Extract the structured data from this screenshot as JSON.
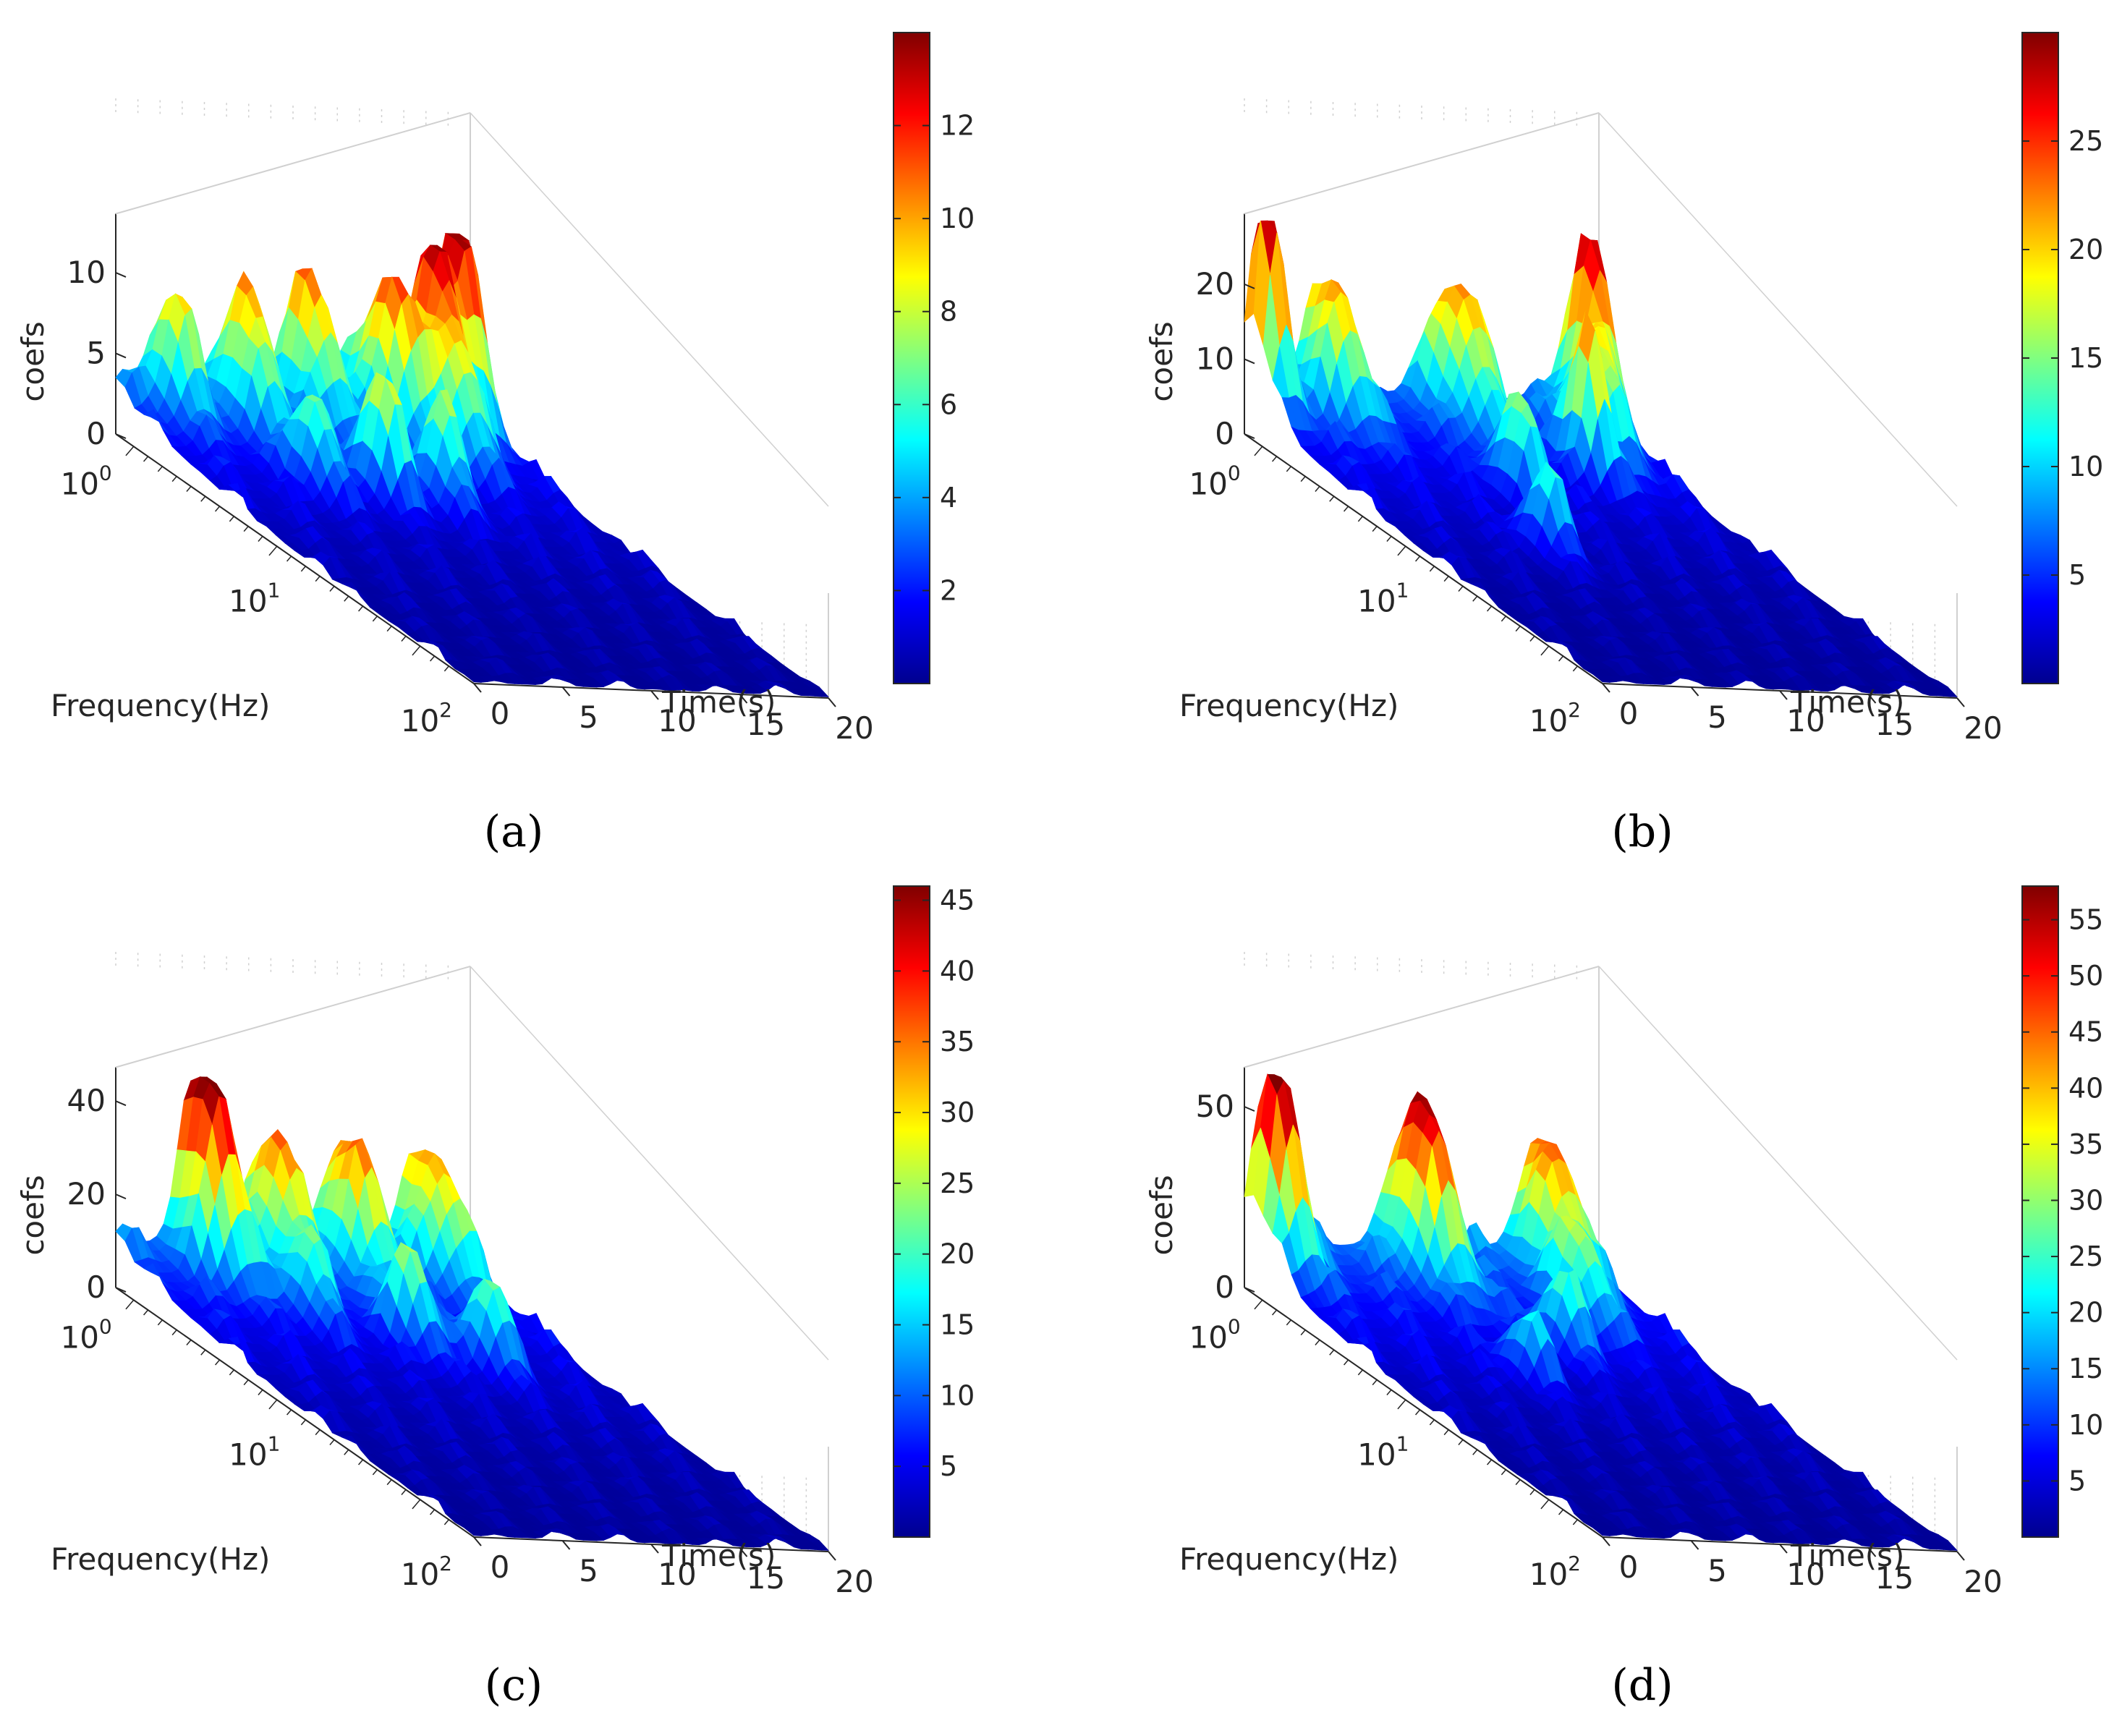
{
  "colormap": [
    "#00008f",
    "#0000ff",
    "#0080ff",
    "#00ffff",
    "#80ff80",
    "#ffff00",
    "#ff8000",
    "#ff0000",
    "#800000"
  ],
  "grid_color": "#d0d0d0",
  "chart_data": [
    {
      "type": "surface3d",
      "caption": "(a)",
      "xlabel": "Frequency(Hz)",
      "ylabel": "Time(s)",
      "zlabel": "coefs",
      "x_scale": "log",
      "x_ticks": [
        {
          "base": "10",
          "exp": "0"
        },
        {
          "base": "10",
          "exp": "1"
        },
        {
          "base": "10",
          "exp": "2"
        }
      ],
      "y_ticks": [
        "0",
        "5",
        "10",
        "15",
        "20"
      ],
      "z_ticks": [
        "0",
        "5",
        "10"
      ],
      "zlim": [
        0,
        13
      ],
      "colorbar_ticks": [
        "2",
        "4",
        "6",
        "8",
        "10",
        "12"
      ],
      "colorbar_range": [
        0,
        14
      ],
      "peaks": [
        {
          "f": 0.05,
          "t": 0.92,
          "z": 13.8,
          "w": 0.05
        },
        {
          "f": 0.08,
          "t": 0.82,
          "z": 11.5,
          "w": 0.05
        },
        {
          "f": 0.1,
          "t": 0.68,
          "z": 10.0,
          "w": 0.06
        },
        {
          "f": 0.06,
          "t": 0.5,
          "z": 8.5,
          "w": 0.06
        },
        {
          "f": 0.08,
          "t": 0.3,
          "z": 8.0,
          "w": 0.06
        },
        {
          "f": 0.05,
          "t": 0.12,
          "z": 7.0,
          "w": 0.05
        },
        {
          "f": 0.3,
          "t": 0.45,
          "z": 8.0,
          "w": 0.05
        },
        {
          "f": 0.32,
          "t": 0.6,
          "z": 6.5,
          "w": 0.05
        },
        {
          "f": 0.28,
          "t": 0.28,
          "z": 6.0,
          "w": 0.05
        },
        {
          "f": 0.18,
          "t": 0.78,
          "z": 7.0,
          "w": 0.06
        }
      ]
    },
    {
      "type": "surface3d",
      "caption": "(b)",
      "xlabel": "Frequency(Hz)",
      "ylabel": "Time(s)",
      "zlabel": "coefs",
      "x_scale": "log",
      "x_ticks": [
        {
          "base": "10",
          "exp": "0"
        },
        {
          "base": "10",
          "exp": "1"
        },
        {
          "base": "10",
          "exp": "2"
        }
      ],
      "y_ticks": [
        "0",
        "5",
        "10",
        "15",
        "20"
      ],
      "z_ticks": [
        "0",
        "10",
        "20"
      ],
      "zlim": [
        0,
        28
      ],
      "colorbar_ticks": [
        "5",
        "10",
        "15",
        "20",
        "25"
      ],
      "colorbar_range": [
        0,
        30
      ],
      "peaks": [
        {
          "f": 0.03,
          "t": 0.04,
          "z": 27.0,
          "w": 0.04
        },
        {
          "f": 0.06,
          "t": 0.2,
          "z": 18.0,
          "w": 0.06
        },
        {
          "f": 0.06,
          "t": 0.55,
          "z": 18.0,
          "w": 0.07
        },
        {
          "f": 0.05,
          "t": 0.93,
          "z": 24.0,
          "w": 0.05
        },
        {
          "f": 0.22,
          "t": 0.75,
          "z": 22.0,
          "w": 0.04
        },
        {
          "f": 0.3,
          "t": 0.48,
          "z": 14.0,
          "w": 0.05
        },
        {
          "f": 0.5,
          "t": 0.35,
          "z": 11.0,
          "w": 0.05
        },
        {
          "f": 0.15,
          "t": 0.85,
          "z": 15.0,
          "w": 0.06
        }
      ]
    },
    {
      "type": "surface3d",
      "caption": "(c)",
      "xlabel": "Frequency(Hz)",
      "ylabel": "Time(s)",
      "zlabel": "coefs",
      "x_scale": "log",
      "x_ticks": [
        {
          "base": "10",
          "exp": "0"
        },
        {
          "base": "10",
          "exp": "1"
        },
        {
          "base": "10",
          "exp": "2"
        }
      ],
      "y_ticks": [
        "0",
        "5",
        "10",
        "15",
        "20"
      ],
      "z_ticks": [
        "0",
        "20",
        "40"
      ],
      "zlim": [
        0,
        45
      ],
      "colorbar_ticks": [
        "5",
        "10",
        "15",
        "20",
        "25",
        "30",
        "35",
        "40",
        "45"
      ],
      "colorbar_range": [
        0,
        46
      ],
      "peaks": [
        {
          "f": 0.05,
          "t": 0.22,
          "z": 44.0,
          "w": 0.06
        },
        {
          "f": 0.06,
          "t": 0.4,
          "z": 30.0,
          "w": 0.06
        },
        {
          "f": 0.06,
          "t": 0.62,
          "z": 28.0,
          "w": 0.07
        },
        {
          "f": 0.05,
          "t": 0.85,
          "z": 26.0,
          "w": 0.07
        },
        {
          "f": 0.28,
          "t": 0.55,
          "z": 22.0,
          "w": 0.05
        },
        {
          "f": 0.35,
          "t": 0.7,
          "z": 20.0,
          "w": 0.05
        },
        {
          "f": 0.2,
          "t": 0.35,
          "z": 16.0,
          "w": 0.05
        }
      ]
    },
    {
      "type": "surface3d",
      "caption": "(d)",
      "xlabel": "Frequency(Hz)",
      "ylabel": "Time(s)",
      "zlabel": "coefs",
      "x_scale": "log",
      "x_ticks": [
        {
          "base": "10",
          "exp": "0"
        },
        {
          "base": "10",
          "exp": "1"
        },
        {
          "base": "10",
          "exp": "2"
        }
      ],
      "y_ticks": [
        "0",
        "5",
        "10",
        "15",
        "20"
      ],
      "z_ticks": [
        "0",
        "50"
      ],
      "zlim": [
        0,
        58
      ],
      "colorbar_ticks": [
        "5",
        "10",
        "15",
        "20",
        "25",
        "30",
        "35",
        "40",
        "45",
        "50",
        "55"
      ],
      "colorbar_range": [
        0,
        58
      ],
      "peaks": [
        {
          "f": 0.04,
          "t": 0.06,
          "z": 56.0,
          "w": 0.05
        },
        {
          "f": 0.06,
          "t": 0.45,
          "z": 47.0,
          "w": 0.07
        },
        {
          "f": 0.05,
          "t": 0.82,
          "z": 36.0,
          "w": 0.07
        },
        {
          "f": 0.3,
          "t": 0.6,
          "z": 22.0,
          "w": 0.05
        },
        {
          "f": 0.4,
          "t": 0.4,
          "z": 18.0,
          "w": 0.05
        },
        {
          "f": 0.2,
          "t": 0.75,
          "z": 25.0,
          "w": 0.06
        }
      ]
    }
  ]
}
